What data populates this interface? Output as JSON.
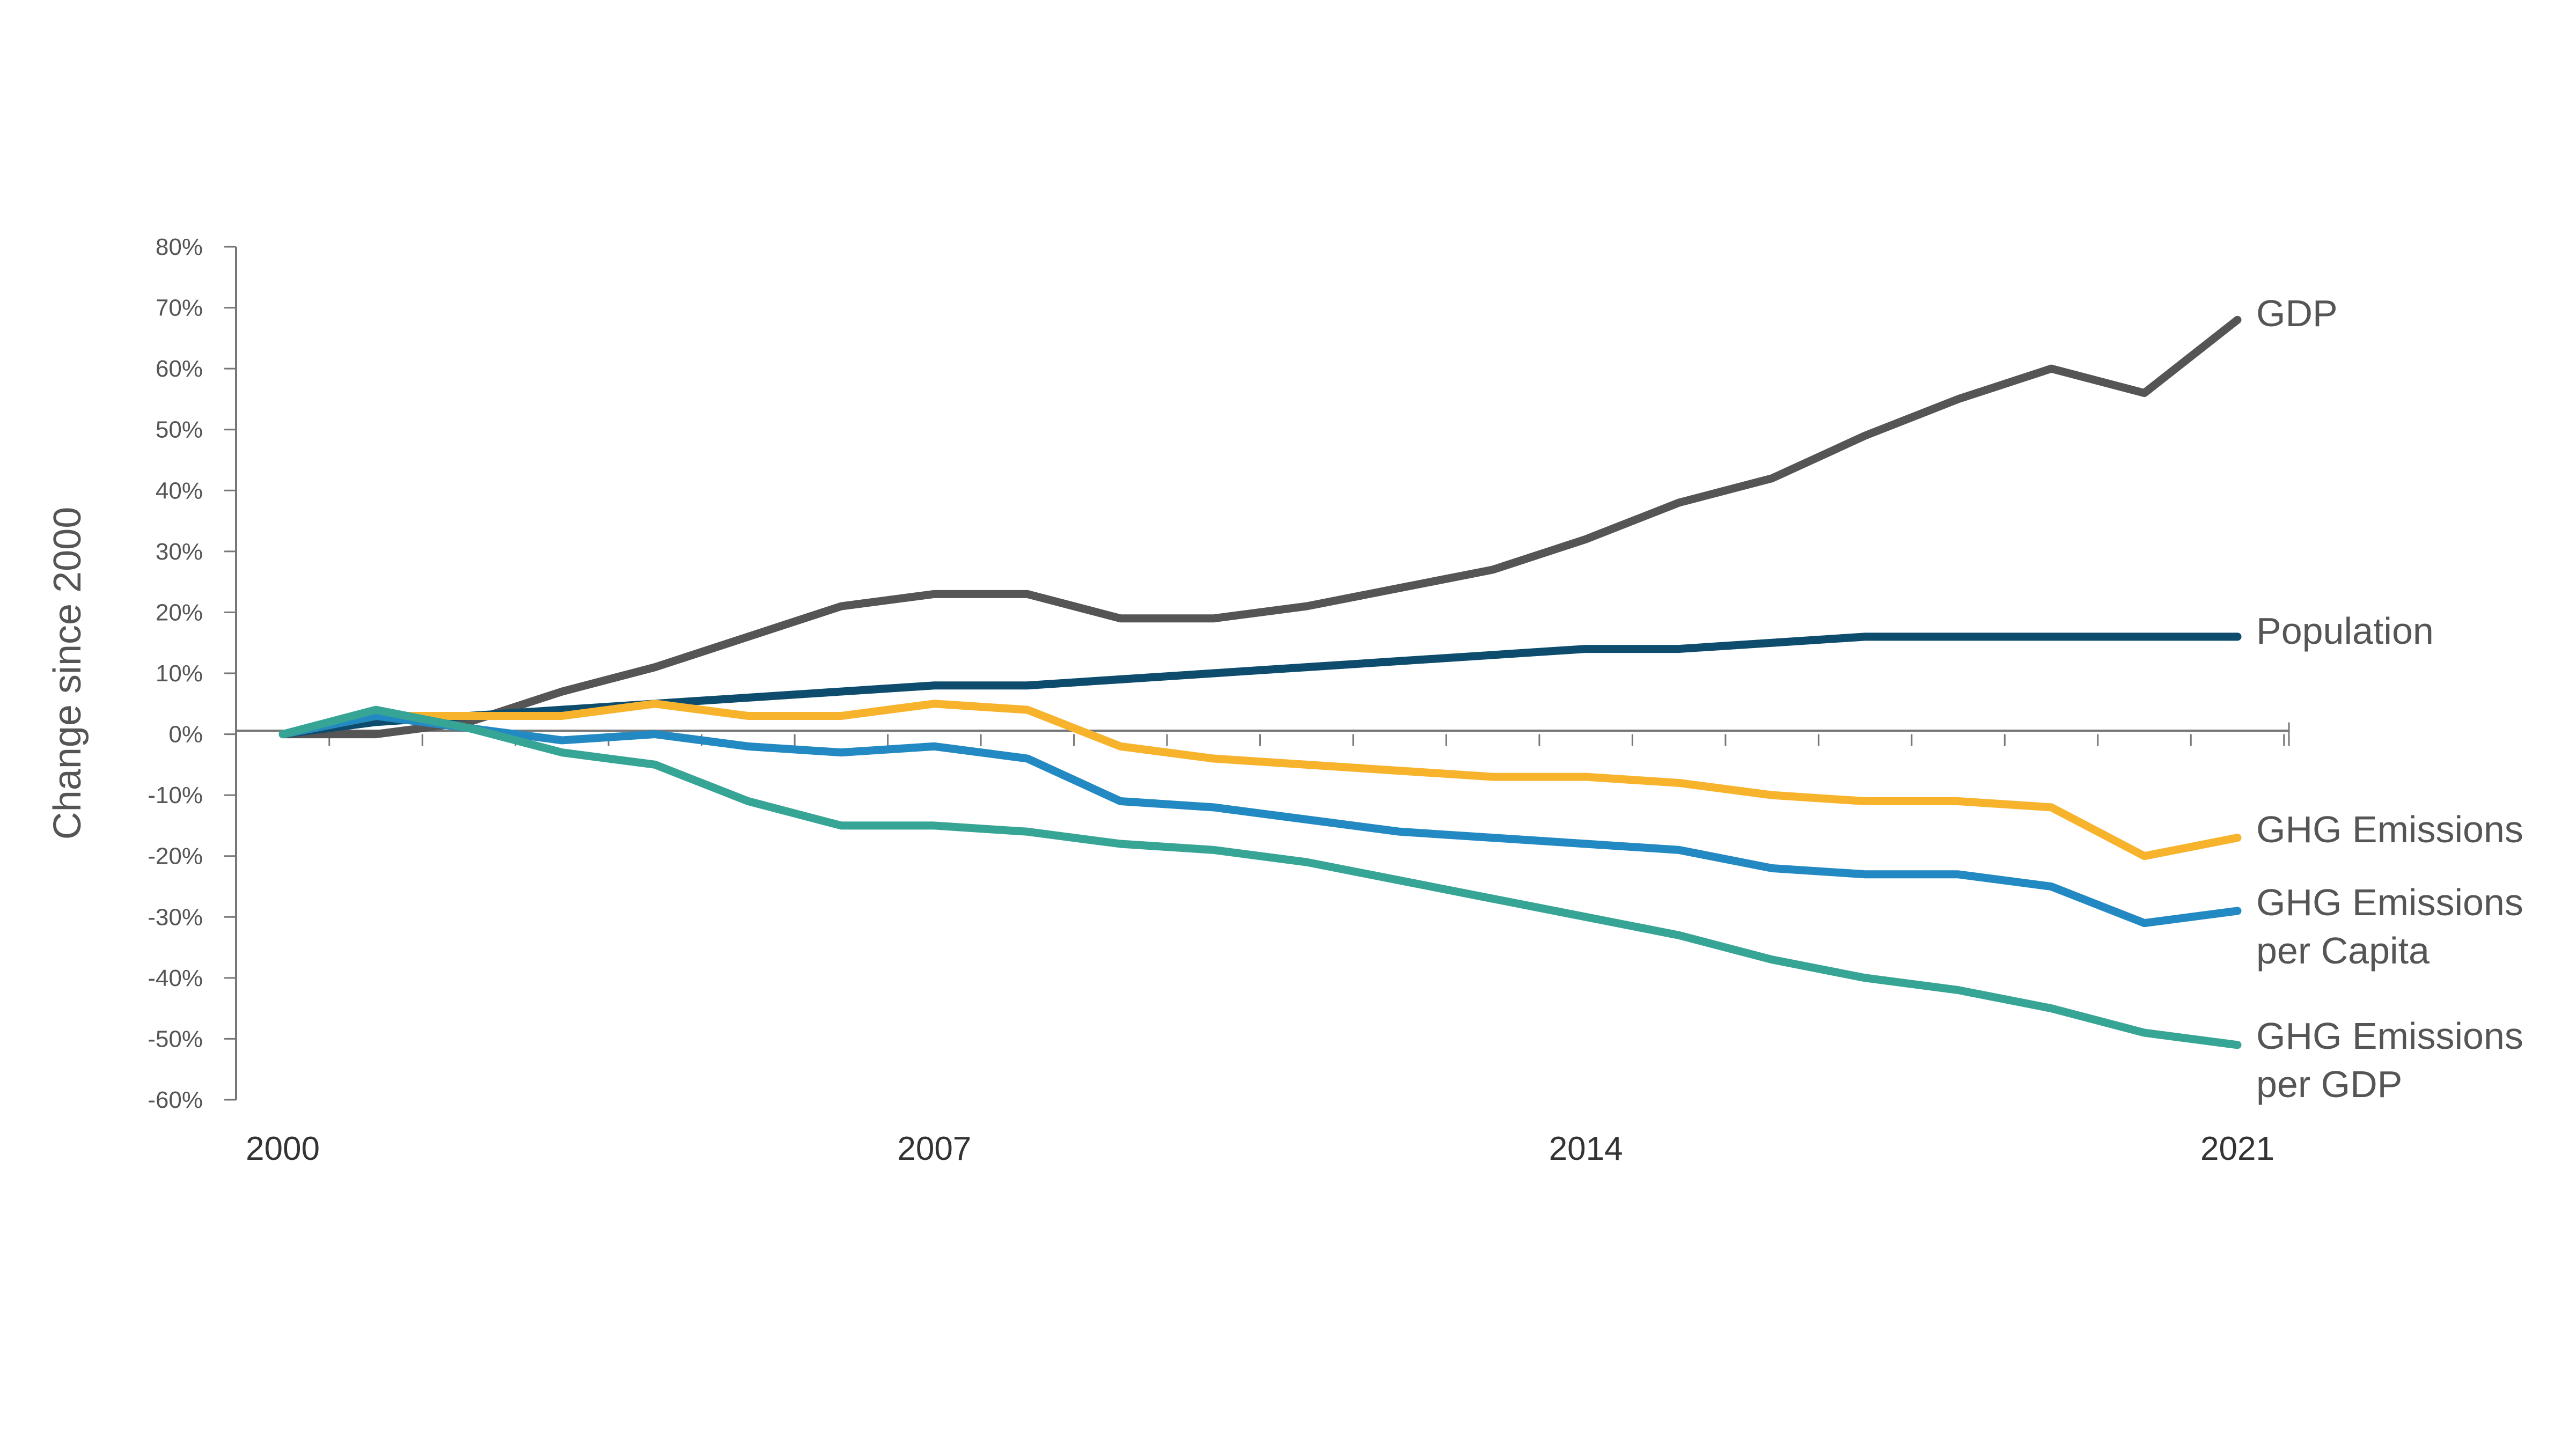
{
  "chart_data": {
    "type": "line",
    "title": "",
    "xlabel": "",
    "ylabel": "Change since 2000",
    "x": [
      2000,
      2001,
      2002,
      2003,
      2004,
      2005,
      2006,
      2007,
      2008,
      2009,
      2010,
      2011,
      2012,
      2013,
      2014,
      2015,
      2016,
      2017,
      2018,
      2019,
      2020,
      2021
    ],
    "x_tick_labels": [
      "2000",
      "2007",
      "2014",
      "2021"
    ],
    "y_tick_labels": [
      "80%",
      "70%",
      "60%",
      "50%",
      "40%",
      "30%",
      "20%",
      "10%",
      "0%",
      "-10%",
      "-20%",
      "-30%",
      "-40%",
      "-50%",
      "-60%"
    ],
    "ylim": [
      -60,
      80
    ],
    "y_unit": "%",
    "grid": false,
    "legend": "labels at line ends (right)",
    "series": [
      {
        "name": "GDP",
        "color": "#555555",
        "values": [
          0,
          0,
          2,
          7,
          11,
          16,
          21,
          23,
          23,
          19,
          19,
          21,
          24,
          27,
          32,
          38,
          42,
          49,
          55,
          60,
          56,
          68
        ]
      },
      {
        "name": "Population",
        "color": "#0e4c6d",
        "values": [
          0,
          2,
          3,
          4,
          5,
          6,
          7,
          8,
          8,
          9,
          10,
          11,
          12,
          13,
          14,
          14,
          15,
          16,
          16,
          16,
          16,
          16
        ]
      },
      {
        "name": "GHG Emissions",
        "color": "#f8b32d",
        "values": [
          0,
          3,
          3,
          3,
          5,
          3,
          3,
          5,
          4,
          -2,
          -4,
          -5,
          -6,
          -7,
          -7,
          -8,
          -10,
          -11,
          -11,
          -12,
          -20,
          -17
        ]
      },
      {
        "name": "GHG Emissions per Capita",
        "label_lines": [
          "GHG Emissions",
          "per Capita"
        ],
        "color": "#2389c2",
        "values": [
          0,
          3,
          1,
          -1,
          0,
          -2,
          -3,
          -2,
          -4,
          -11,
          -12,
          -14,
          -16,
          -17,
          -18,
          -19,
          -22,
          -23,
          -23,
          -25,
          -31,
          -29
        ]
      },
      {
        "name": "GHG Emissions per GDP",
        "label_lines": [
          "GHG Emissions",
          "per GDP"
        ],
        "color": "#37a595",
        "values": [
          0,
          4,
          1,
          -3,
          -5,
          -11,
          -15,
          -15,
          -16,
          -18,
          -19,
          -21,
          -24,
          -27,
          -30,
          -33,
          -37,
          -40,
          -42,
          -45,
          -49,
          -51
        ]
      }
    ]
  }
}
